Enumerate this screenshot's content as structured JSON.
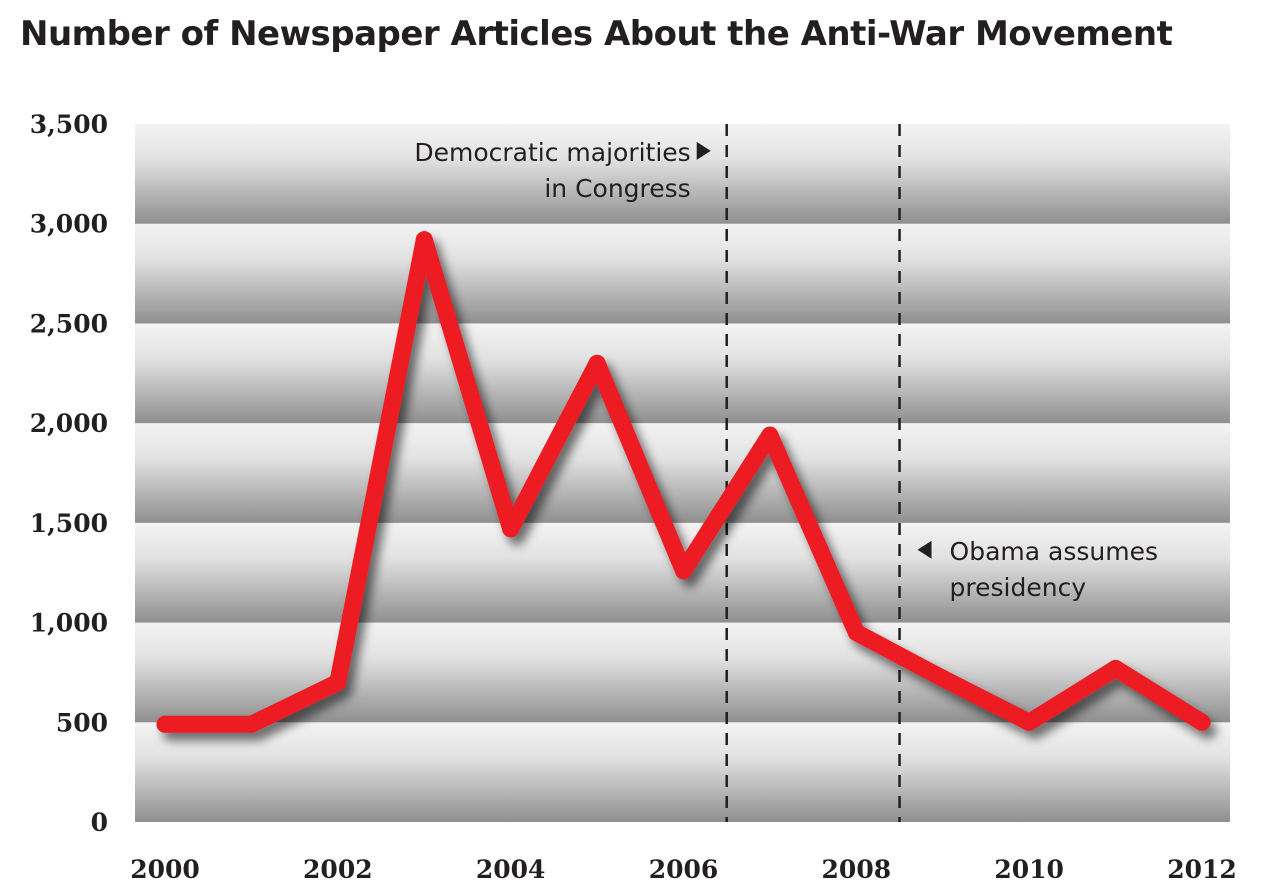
{
  "chart_data": {
    "type": "line",
    "title": "Number of Newspaper Articles About the Anti-War Movement",
    "xlabel": "",
    "ylabel": "",
    "x": [
      2000,
      2001,
      2002,
      2003,
      2004,
      2005,
      2006,
      2007,
      2008,
      2009,
      2010,
      2011,
      2012
    ],
    "series": [
      {
        "values": [
          490,
          490,
          700,
          2920,
          1470,
          2300,
          1260,
          1940,
          950,
          720,
          500,
          770,
          500
        ]
      }
    ],
    "xlim": [
      2000,
      2012
    ],
    "ylim": [
      0,
      3500
    ],
    "x_ticks": [
      2000,
      2002,
      2004,
      2006,
      2008,
      2010,
      2012
    ],
    "x_tick_labels": [
      "2000",
      "2002",
      "2004",
      "2006",
      "2008",
      "2010",
      "2012"
    ],
    "y_ticks": [
      0,
      500,
      1000,
      1500,
      2000,
      2500,
      3000,
      3500
    ],
    "y_tick_labels": [
      "0",
      "500",
      "1,000",
      "1,500",
      "2,000",
      "2,500",
      "3,000",
      "3,500"
    ],
    "grid": true,
    "legend": "none",
    "colors": {
      "line": "#ed1c24",
      "band_light": "#f3f3f3",
      "band_dark": "#8f8f8f",
      "text": "#231f20"
    },
    "annotations": [
      {
        "x": 2006.5,
        "lines": [
          "Democratic majorities",
          "in Congress"
        ],
        "arrow": "right"
      },
      {
        "x": 2008.5,
        "lines": [
          "Obama assumes",
          "presidency"
        ],
        "arrow": "left"
      }
    ]
  }
}
